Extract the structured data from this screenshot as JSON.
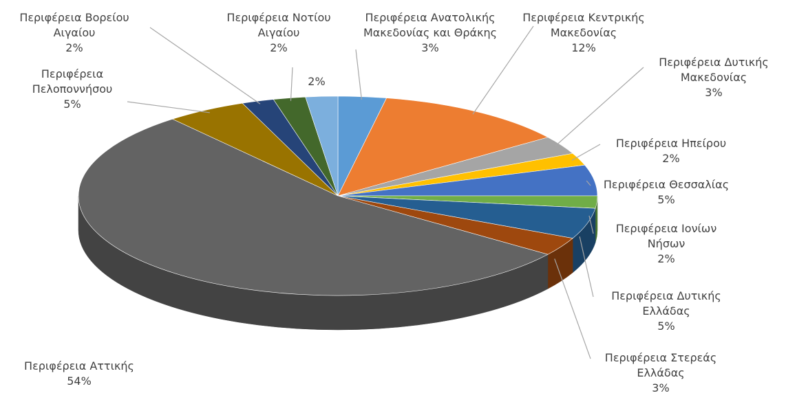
{
  "chart_data": {
    "type": "pie",
    "three_d": true,
    "categories": [
      "Περιφέρεια Ανατολικής Μακεδονίας και Θράκης",
      "Περιφέρεια Κεντρικής Μακεδονίας",
      "Περιφέρεια Δυτικής Μακεδονίας",
      "Περιφέρεια Ηπείρου",
      "Περιφέρεια Θεσσαλίας",
      "Περιφέρεια Ιονίων Νήσων",
      "Περιφέρεια Δυτικής Ελλάδας",
      "Περιφέρεια Στερεάς Ελλάδας",
      "Περιφέρεια Αττικής",
      "Περιφέρεια Πελοποννήσου",
      "Περιφέρεια Βορείου Αιγαίου",
      "Περιφέρεια Νοτίου Αιγαίου",
      null
    ],
    "values": [
      3,
      12,
      3,
      2,
      5,
      2,
      5,
      3,
      54,
      5,
      2,
      2,
      2
    ],
    "value_labels": [
      "3%",
      "12%",
      "3%",
      "2%",
      "5%",
      "2%",
      "5%",
      "3%",
      "54%",
      "5%",
      "2%",
      "2%",
      "2%"
    ],
    "colors": [
      "#5b9bd5",
      "#ed7d31",
      "#a5a5a5",
      "#ffc000",
      "#4472c4",
      "#70ad47",
      "#255e91",
      "#9e480e",
      "#636363",
      "#997300",
      "#264478",
      "#43682b",
      "#7cafdd"
    ]
  }
}
